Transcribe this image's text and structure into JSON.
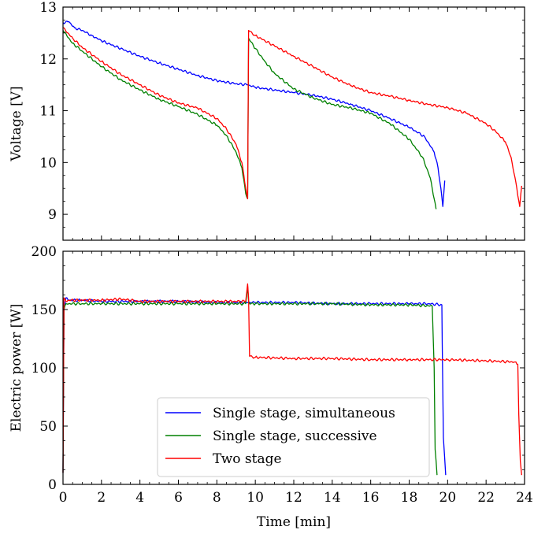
{
  "chart_data": [
    {
      "type": "line",
      "title": "",
      "xlabel": "",
      "ylabel": "Voltage [V]",
      "xlim": [
        0,
        24
      ],
      "ylim": [
        8.5,
        13
      ],
      "xticks": [
        0,
        2,
        4,
        6,
        8,
        10,
        12,
        14,
        16,
        18,
        20,
        22,
        24
      ],
      "yticks": [
        9,
        10,
        11,
        12,
        13
      ],
      "grid": false,
      "series": [
        {
          "name": "Single stage, simultaneous",
          "color": "#0000ff",
          "x": [
            0,
            0.3,
            0.6,
            1,
            1.5,
            2,
            3,
            4,
            5,
            6,
            7,
            8,
            9,
            9.6,
            10,
            11,
            12,
            13,
            14,
            15,
            16,
            17,
            18,
            18.8,
            19.3,
            19.5,
            19.65,
            19.75,
            19.85
          ],
          "y": [
            12.7,
            12.72,
            12.6,
            12.55,
            12.45,
            12.35,
            12.2,
            12.05,
            11.92,
            11.8,
            11.68,
            11.58,
            11.52,
            11.5,
            11.45,
            11.4,
            11.35,
            11.3,
            11.22,
            11.12,
            11.0,
            10.85,
            10.68,
            10.5,
            10.2,
            9.9,
            9.5,
            9.15,
            9.65
          ]
        },
        {
          "name": "Single stage, successive",
          "color": "#008000",
          "x": [
            0,
            0.5,
            1,
            2,
            3,
            4,
            5,
            6,
            7,
            8,
            8.5,
            9,
            9.3,
            9.5,
            9.6,
            9.65,
            10,
            10.5,
            11,
            12,
            13,
            14,
            15,
            16,
            17,
            18,
            18.7,
            19.1,
            19.3,
            19.4
          ],
          "y": [
            12.55,
            12.3,
            12.15,
            11.85,
            11.6,
            11.4,
            11.22,
            11.08,
            10.93,
            10.72,
            10.52,
            10.2,
            9.9,
            9.4,
            9.3,
            12.4,
            12.2,
            11.95,
            11.72,
            11.42,
            11.25,
            11.12,
            11.05,
            10.95,
            10.75,
            10.45,
            10.1,
            9.7,
            9.3,
            9.1
          ]
        },
        {
          "name": "Two stage",
          "color": "#ff0000",
          "x": [
            0,
            0.5,
            1,
            2,
            3,
            4,
            5,
            6,
            7,
            8,
            8.5,
            9,
            9.3,
            9.5,
            9.6,
            9.65,
            10,
            11,
            12,
            13,
            14,
            15,
            16,
            17,
            18,
            19,
            20,
            21,
            22,
            22.5,
            23,
            23.3,
            23.6,
            23.75,
            23.85
          ],
          "y": [
            12.6,
            12.4,
            12.22,
            11.95,
            11.7,
            11.5,
            11.3,
            11.15,
            11.05,
            10.85,
            10.65,
            10.35,
            10.0,
            9.5,
            9.3,
            12.55,
            12.45,
            12.25,
            12.05,
            11.85,
            11.65,
            11.48,
            11.35,
            11.28,
            11.2,
            11.12,
            11.06,
            10.95,
            10.75,
            10.6,
            10.4,
            10.1,
            9.5,
            9.15,
            9.55
          ]
        }
      ]
    },
    {
      "type": "line",
      "title": "",
      "xlabel": "Time [min]",
      "ylabel": "Electric power [W]",
      "xlim": [
        0,
        24
      ],
      "ylim": [
        0,
        200
      ],
      "xticks": [
        0,
        2,
        4,
        6,
        8,
        10,
        12,
        14,
        16,
        18,
        20,
        22,
        24
      ],
      "yticks": [
        0,
        50,
        100,
        150,
        200
      ],
      "grid": false,
      "legend": "lower-center",
      "series": [
        {
          "name": "Single stage, simultaneous",
          "color": "#0000ff",
          "x": [
            0,
            0.05,
            0.15,
            0.3,
            1,
            2,
            4,
            6,
            8,
            9.6,
            10,
            12,
            14,
            16,
            18,
            19,
            19.7,
            19.72,
            19.78,
            19.9
          ],
          "y": [
            10,
            150,
            160,
            158,
            158,
            157,
            157,
            157,
            156,
            156,
            156,
            156,
            155,
            155,
            155,
            155,
            154,
            120,
            40,
            8
          ]
        },
        {
          "name": "Single stage, successive",
          "color": "#008000",
          "x": [
            0,
            0.05,
            0.15,
            0.3,
            1,
            2,
            4,
            6,
            8,
            9.5,
            9.6,
            9.65,
            9.7,
            10,
            12,
            14,
            16,
            18,
            19.2,
            19.3,
            19.35,
            19.45
          ],
          "y": [
            10,
            150,
            155,
            155,
            155,
            155,
            155,
            155,
            155,
            155,
            170,
            157,
            155,
            155,
            155,
            155,
            154,
            154,
            153,
            100,
            30,
            8
          ]
        },
        {
          "name": "Two stage",
          "color": "#ff0000",
          "x": [
            0,
            0.05,
            0.15,
            0.3,
            1,
            2,
            3,
            4,
            6,
            8,
            9.5,
            9.6,
            9.65,
            9.7,
            10,
            12,
            14,
            16,
            18,
            20,
            22,
            23.5,
            23.65,
            23.7,
            23.78,
            23.85
          ],
          "y": [
            10,
            160,
            157,
            158,
            158,
            158,
            159,
            157,
            157,
            157,
            157,
            172,
            160,
            110,
            109,
            108,
            108,
            107,
            107,
            107,
            106,
            105,
            103,
            60,
            20,
            8
          ]
        }
      ]
    }
  ]
}
